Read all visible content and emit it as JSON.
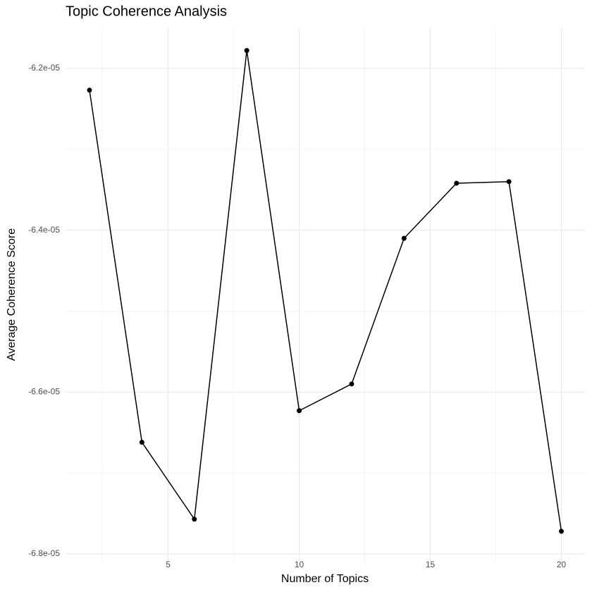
{
  "chart_data": {
    "type": "line",
    "title": "Topic Coherence Analysis",
    "x_label": "Number of Topics",
    "y_label": "Average Coherence Score",
    "x": [
      2,
      4,
      6,
      8,
      10,
      12,
      14,
      16,
      18,
      20
    ],
    "values": [
      -6.227e-05,
      -6.662e-05,
      -6.757e-05,
      -6.178e-05,
      -6.623e-05,
      -6.59e-05,
      -6.41e-05,
      -6.342e-05,
      -6.34e-05,
      -6.772e-05
    ],
    "color": "#000000",
    "xlim": [
      1.1,
      20.9
    ],
    "xticks": [
      5,
      10,
      15,
      20
    ],
    "ylim": [
      -6.81e-05,
      -6.15e-05
    ],
    "yticks": [
      {
        "value": -6.8e-05,
        "label": "-6.8e-05"
      },
      {
        "value": -6.6e-05,
        "label": "-6.6e-05"
      },
      {
        "value": -6.4e-05,
        "label": "-6.4e-05"
      },
      {
        "value": -6.2e-05,
        "label": "-6.2e-05"
      }
    ],
    "x_minor_grid": [
      2.5,
      7.5,
      12.5,
      17.5
    ],
    "y_minor_grid": [
      -6.7e-05,
      -6.5e-05,
      -6.3e-05
    ],
    "grid": true
  }
}
